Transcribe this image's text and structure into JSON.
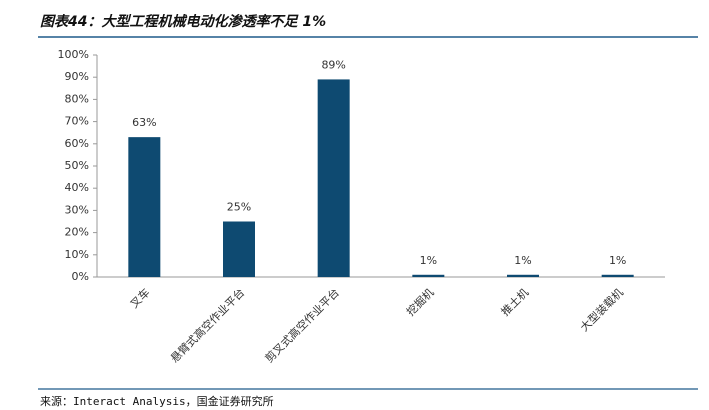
{
  "chart_data": {
    "type": "bar",
    "title": "图表44：大型工程机械电动化渗透率不足 1%",
    "source": "来源：Interact Analysis，国金证券研究所",
    "categories": [
      "叉车",
      "悬臂式高空作业平台",
      "剪叉式高空作业平台",
      "挖掘机",
      "推土机",
      "大型装载机"
    ],
    "values": [
      63,
      25,
      89,
      1,
      1,
      1
    ],
    "value_labels": [
      "63%",
      "25%",
      "89%",
      "1%",
      "1%",
      "1%"
    ],
    "color": "#0e4a71",
    "ylim": [
      0,
      100
    ],
    "yticks": [
      {
        "value": 0,
        "label": "0%"
      },
      {
        "value": 10,
        "label": "10%"
      },
      {
        "value": 20,
        "label": "20%"
      },
      {
        "value": 30,
        "label": "30%"
      },
      {
        "value": 40,
        "label": "40%"
      },
      {
        "value": 50,
        "label": "50%"
      },
      {
        "value": 60,
        "label": "60%"
      },
      {
        "value": 70,
        "label": "70%"
      },
      {
        "value": 80,
        "label": "80%"
      },
      {
        "value": 90,
        "label": "90%"
      },
      {
        "value": 100,
        "label": "100%"
      }
    ],
    "grid": false
  }
}
